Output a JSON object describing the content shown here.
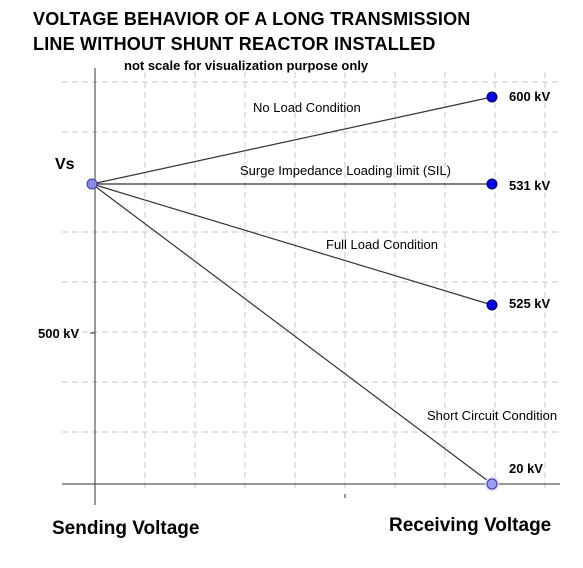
{
  "title_line1": "VOLTAGE BEHAVIOR OF A LONG TRANSMISSION",
  "title_line2": "LINE WITHOUT SHUNT REACTOR INSTALLED",
  "subtitle": "not scale for visualization purpose only",
  "sending_label": "Vs",
  "axis_mark_label": "500 kV",
  "x_axis_left": "Sending Voltage",
  "x_axis_right": "Receiving Voltage",
  "conditions": [
    {
      "name": "No Load Condition",
      "value": "600 kV"
    },
    {
      "name": "Surge Impedance Loading limit (SIL)",
      "value": "531 kV"
    },
    {
      "name": "Full Load Condition",
      "value": "525 kV"
    },
    {
      "name": "Short Circuit Condition",
      "value": "20 kV"
    }
  ],
  "colors": {
    "line": "#333333",
    "grid": "#c8c8c8",
    "point_fill": "#0000ee",
    "sending_point_fill": "#8c8cf0",
    "short_circuit_point_fill": "#9c9cf2"
  }
}
